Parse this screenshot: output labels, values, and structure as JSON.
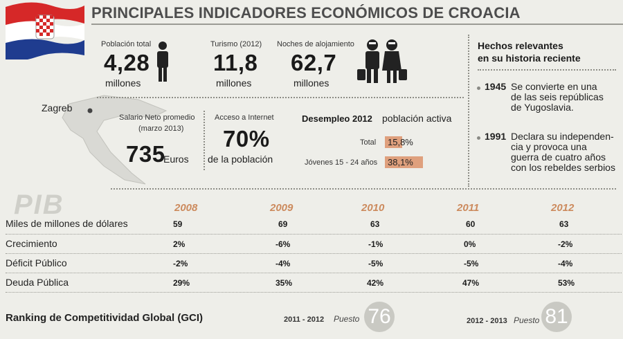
{
  "header": {
    "title": "PRINCIPALES INDICADORES ECONÓMICOS DE CROACIA"
  },
  "map": {
    "city": "Zagreb"
  },
  "population": {
    "label": "Población total",
    "value": "4,28",
    "unit": "millones"
  },
  "tourism": {
    "label": "Turismo (2012)",
    "value": "11,8",
    "unit": "millones"
  },
  "nights": {
    "label": "Noches de alojamiento",
    "value": "62,7",
    "unit": "millones"
  },
  "salary": {
    "label_line1": "Salario Neto promedio",
    "label_line2": "(marzo 2013)",
    "value": "735",
    "unit": "Euros"
  },
  "internet": {
    "label": "Acceso a Internet",
    "value": "70%",
    "unit": "de la población"
  },
  "unemployment": {
    "title": "Desempleo 2012",
    "subtitle": "población activa",
    "rows": [
      {
        "label": "Total",
        "value": "15,8%",
        "pct": 15.8
      },
      {
        "label": "Jóvenes 15 - 24 años",
        "value": "38,1%",
        "pct": 38.1
      }
    ],
    "bar_color": "#dfa07d"
  },
  "facts": {
    "title_line1": "Hechos relevantes",
    "title_line2": "en su historia reciente",
    "items": [
      {
        "year": "1945",
        "lines": [
          "Se convierte en una",
          "de las seis repúblicas",
          "de Yugoslavia."
        ]
      },
      {
        "year": "1991",
        "lines": [
          "Declara su independen-",
          "cia y provoca una",
          "guerra de cuatro años",
          "con los rebeldes serbios"
        ]
      }
    ]
  },
  "pib": {
    "heading": "PIB",
    "years": [
      "2008",
      "2009",
      "2010",
      "2011",
      "2012"
    ],
    "rows": [
      {
        "label": "Miles de millones de dólares",
        "values": [
          "59",
          "69",
          "63",
          "60",
          "63"
        ]
      },
      {
        "label": "Crecimiento",
        "values": [
          "2%",
          "-6%",
          "-1%",
          "0%",
          "-2%"
        ]
      },
      {
        "label": "Déficit Público",
        "values": [
          "-2%",
          "-4%",
          "-5%",
          "-5%",
          "-4%"
        ]
      },
      {
        "label": "Deuda Pública",
        "values": [
          "29%",
          "35%",
          "42%",
          "47%",
          "53%"
        ]
      }
    ]
  },
  "ranking": {
    "label": "Ranking de Competitividad Global (GCI)",
    "entries": [
      {
        "period": "2011 - 2012",
        "puesto_label": "Puesto",
        "rank": "76"
      },
      {
        "period": "2012 - 2013",
        "puesto_label": "Puesto",
        "rank": "81"
      }
    ]
  },
  "colors": {
    "accent": "#cc8a5d",
    "bar": "#dfa07d",
    "background": "#eeeee9"
  }
}
